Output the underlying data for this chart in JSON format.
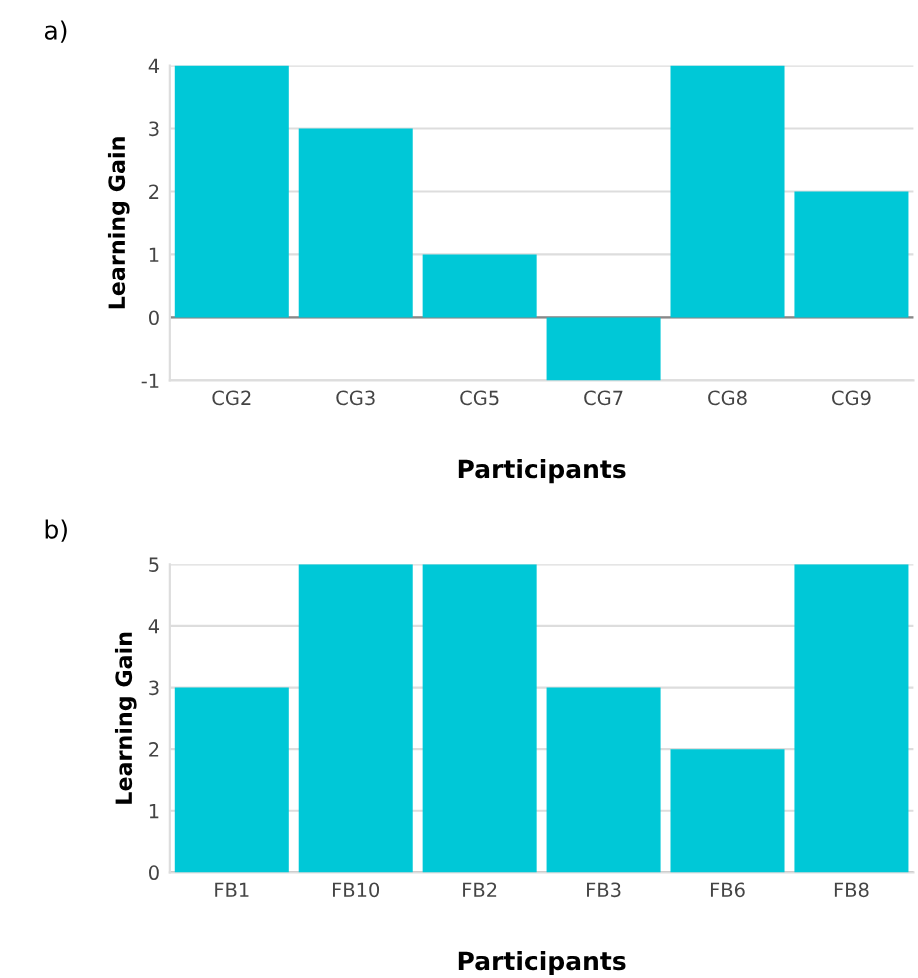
{
  "chart_data": [
    {
      "type": "bar",
      "title": "a)",
      "xlabel": "Participants",
      "ylabel": "Learning Gain",
      "categories": [
        "CG2",
        "CG3",
        "CG5",
        "CG7",
        "CG8",
        "CG9"
      ],
      "values": [
        4,
        3,
        1,
        -1,
        4,
        2
      ],
      "color": "#00c8d7",
      "ylim": [
        -1,
        4
      ],
      "yticks": [
        -1,
        0,
        1,
        2,
        3,
        4
      ],
      "grid": "y"
    },
    {
      "type": "bar",
      "title": "b)",
      "xlabel": "Participants",
      "ylabel": "Learning Gain",
      "categories": [
        "FB1",
        "FB10",
        "FB2",
        "FB3",
        "FB6",
        "FB8"
      ],
      "values": [
        3,
        5,
        5,
        3,
        2,
        5
      ],
      "color": "#00c8d7",
      "ylim": [
        0,
        5
      ],
      "yticks": [
        0,
        1,
        2,
        3,
        4,
        5
      ],
      "grid": "y"
    }
  ]
}
